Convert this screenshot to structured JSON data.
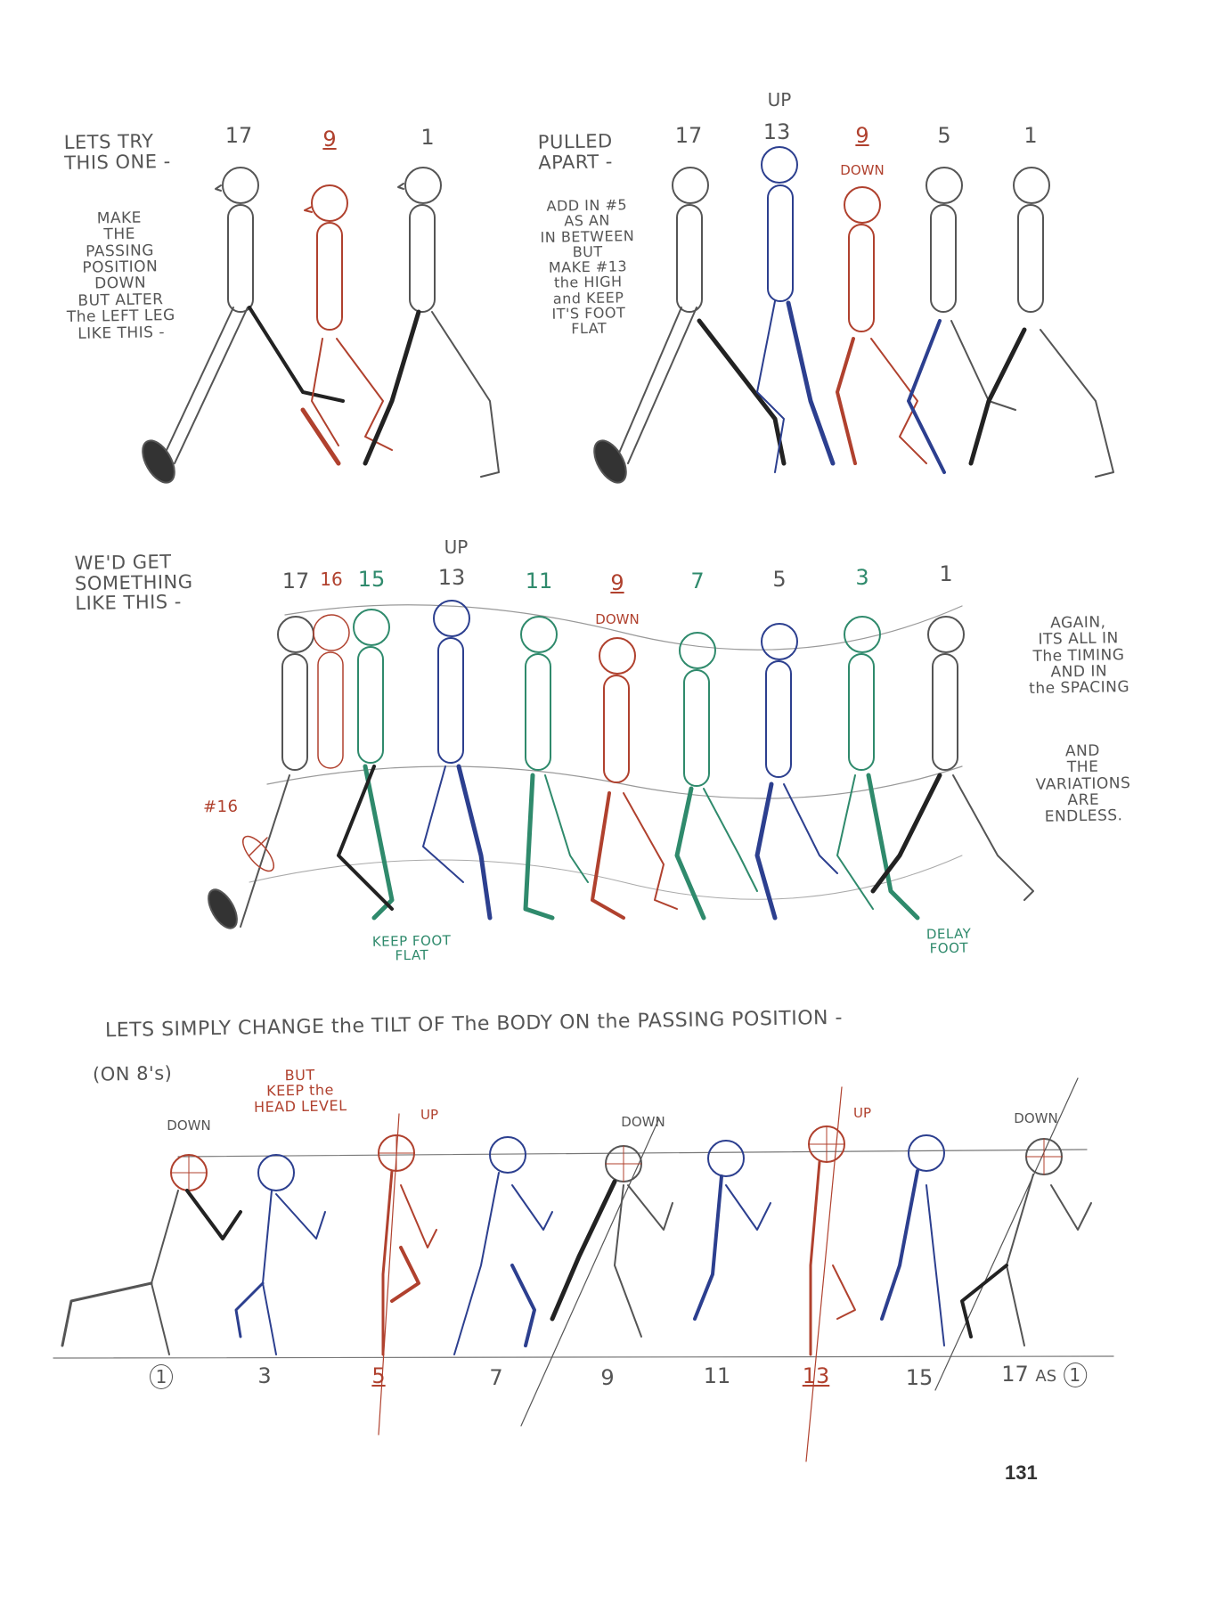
{
  "page_number": "131",
  "colors": {
    "pencil": "#555555",
    "red": "#b0412e",
    "blue": "#2c3f8f",
    "teal": "#2f8a6c",
    "black": "#222222"
  },
  "top_left": {
    "heading": "LETS TRY\nTHIS ONE -",
    "note": "MAKE\nTHE\nPASSING\nPOSITION\nDOWN\nBUT ALTER\nThe LEFT LEG\nLIKE THIS -",
    "frames": [
      "17",
      "9",
      "1"
    ]
  },
  "top_right": {
    "heading": "PULLED\nAPART -",
    "note": "ADD IN #5\nAS AN\nIN BETWEEN\nBUT\nMAKE #13\nthe HIGH\nand KEEP\nIT'S FOOT\nFLAT",
    "frames": [
      "17",
      "13",
      "9",
      "5",
      "1"
    ],
    "up_label": "UP",
    "down_label": "DOWN"
  },
  "middle": {
    "heading": "WE'D GET\nSOMETHING\nLIKE THIS -",
    "frames": [
      "17",
      "16",
      "15",
      "13",
      "11",
      "9",
      "7",
      "5",
      "3",
      "1"
    ],
    "up_label": "UP",
    "down_label": "DOWN",
    "marker_16": "#16",
    "keep_foot_flat": "KEEP FOOT\nFLAT",
    "delay_foot": "DELAY\nFOOT",
    "side_note_1": "AGAIN,\nITS ALL IN\nThe TIMING\nAND IN\nthe SPACING",
    "side_note_2": "AND\nTHE\nVARIATIONS\nARE\nENDLESS."
  },
  "bottom": {
    "heading": "LETS SIMPLY CHANGE the TILT OF The BODY ON the PASSING POSITION -",
    "sub": "(ON 8's)",
    "red_note": "BUT\nKEEP the\nHEAD LEVEL",
    "labels": [
      "DOWN",
      "UP",
      "DOWN",
      "UP",
      "DOWN"
    ],
    "frames": [
      "1",
      "3",
      "5",
      "7",
      "9",
      "11",
      "13",
      "15",
      "17"
    ],
    "last_as": "AS",
    "last_as_value": "1"
  }
}
